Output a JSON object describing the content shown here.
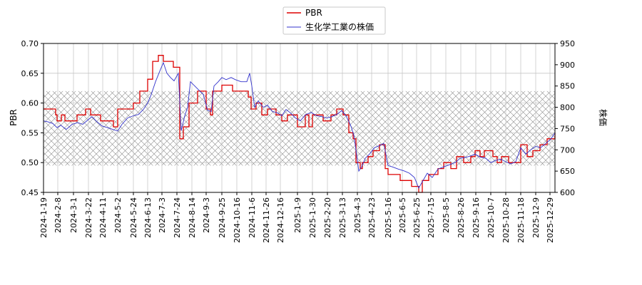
{
  "chart_data": {
    "type": "line",
    "legend": {
      "placement": "top-center"
    },
    "grid": true,
    "band": {
      "from": 0.495,
      "to": 0.62,
      "pattern": "crosshatch",
      "axis": "left"
    },
    "x_ticks": [
      "2024-1-19",
      "2024-2-8",
      "2024-3-1",
      "2024-3-22",
      "2024-4-11",
      "2024-5-2",
      "2024-5-24",
      "2024-6-13",
      "2024-7-3",
      "2024-7-24",
      "2024-8-14",
      "2024-9-3",
      "2024-9-25",
      "2024-10-16",
      "2024-11-6",
      "2024-11-26",
      "2024-12-16",
      "2025-1-9",
      "2025-1-30",
      "2025-2-20",
      "2025-3-13",
      "2025-4-3",
      "2025-4-23",
      "2025-5-16",
      "2025-6-5",
      "2025-6-25",
      "2025-7-15",
      "2025-8-5",
      "2025-8-26",
      "2025-9-16",
      "2025-10-7",
      "2025-10-28",
      "2025-11-18",
      "2025-12-9",
      "2025-12-29"
    ],
    "y_left": {
      "label": "PBR",
      "ylim": [
        0.45,
        0.7
      ],
      "ticks": [
        "0.45",
        "0.50",
        "0.55",
        "0.60",
        "0.65",
        "0.70"
      ]
    },
    "y_right": {
      "label": "株価",
      "ylim": [
        600,
        950
      ],
      "ticks": [
        "600",
        "650",
        "700",
        "750",
        "800",
        "850",
        "900",
        "950"
      ]
    },
    "series": [
      {
        "name": "PBR",
        "axis": "left",
        "color": "#dd0000",
        "step": true,
        "points": [
          [
            "2024-01-19",
            0.59
          ],
          [
            "2024-02-05",
            0.58
          ],
          [
            "2024-02-07",
            0.57
          ],
          [
            "2024-02-13",
            0.58
          ],
          [
            "2024-02-18",
            0.57
          ],
          [
            "2024-03-01",
            0.57
          ],
          [
            "2024-03-06",
            0.58
          ],
          [
            "2024-03-18",
            0.59
          ],
          [
            "2024-03-25",
            0.58
          ],
          [
            "2024-04-08",
            0.57
          ],
          [
            "2024-04-26",
            0.56
          ],
          [
            "2024-05-02",
            0.59
          ],
          [
            "2024-05-24",
            0.6
          ],
          [
            "2024-06-02",
            0.62
          ],
          [
            "2024-06-13",
            0.64
          ],
          [
            "2024-06-20",
            0.67
          ],
          [
            "2024-06-28",
            0.68
          ],
          [
            "2024-07-05",
            0.67
          ],
          [
            "2024-07-19",
            0.66
          ],
          [
            "2024-07-28",
            0.54
          ],
          [
            "2024-08-02",
            0.56
          ],
          [
            "2024-08-10",
            0.6
          ],
          [
            "2024-08-22",
            0.62
          ],
          [
            "2024-09-03",
            0.59
          ],
          [
            "2024-09-09",
            0.58
          ],
          [
            "2024-09-12",
            0.62
          ],
          [
            "2024-09-25",
            0.63
          ],
          [
            "2024-10-10",
            0.62
          ],
          [
            "2024-10-16",
            0.62
          ],
          [
            "2024-11-01",
            0.61
          ],
          [
            "2024-11-05",
            0.59
          ],
          [
            "2024-11-12",
            0.6
          ],
          [
            "2024-11-20",
            0.58
          ],
          [
            "2024-11-28",
            0.59
          ],
          [
            "2024-12-10",
            0.58
          ],
          [
            "2024-12-18",
            0.57
          ],
          [
            "2024-12-26",
            0.58
          ],
          [
            "2025-01-09",
            0.56
          ],
          [
            "2025-01-20",
            0.58
          ],
          [
            "2025-01-25",
            0.56
          ],
          [
            "2025-01-30",
            0.58
          ],
          [
            "2025-02-14",
            0.57
          ],
          [
            "2025-02-25",
            0.58
          ],
          [
            "2025-03-05",
            0.59
          ],
          [
            "2025-03-14",
            0.58
          ],
          [
            "2025-03-22",
            0.55
          ],
          [
            "2025-03-28",
            0.54
          ],
          [
            "2025-04-01",
            0.5
          ],
          [
            "2025-04-07",
            0.49
          ],
          [
            "2025-04-10",
            0.5
          ],
          [
            "2025-04-18",
            0.51
          ],
          [
            "2025-04-25",
            0.52
          ],
          [
            "2025-05-04",
            0.53
          ],
          [
            "2025-05-12",
            0.49
          ],
          [
            "2025-05-16",
            0.48
          ],
          [
            "2025-06-02",
            0.47
          ],
          [
            "2025-06-18",
            0.46
          ],
          [
            "2025-06-28",
            0.45
          ],
          [
            "2025-07-03",
            0.47
          ],
          [
            "2025-07-12",
            0.48
          ],
          [
            "2025-07-25",
            0.49
          ],
          [
            "2025-08-02",
            0.5
          ],
          [
            "2025-08-12",
            0.49
          ],
          [
            "2025-08-20",
            0.51
          ],
          [
            "2025-08-30",
            0.5
          ],
          [
            "2025-09-09",
            0.51
          ],
          [
            "2025-09-15",
            0.52
          ],
          [
            "2025-09-22",
            0.51
          ],
          [
            "2025-09-28",
            0.52
          ],
          [
            "2025-10-10",
            0.51
          ],
          [
            "2025-10-16",
            0.5
          ],
          [
            "2025-10-22",
            0.51
          ],
          [
            "2025-11-01",
            0.5
          ],
          [
            "2025-11-10",
            0.5
          ],
          [
            "2025-11-18",
            0.53
          ],
          [
            "2025-11-27",
            0.51
          ],
          [
            "2025-12-05",
            0.52
          ],
          [
            "2025-12-15",
            0.53
          ],
          [
            "2025-12-25",
            0.54
          ],
          [
            "2026-01-05",
            0.55
          ]
        ]
      },
      {
        "name": "生化学工業の株価",
        "axis": "right",
        "color": "#3333cc",
        "step": false,
        "points": [
          [
            "2024-01-19",
            768
          ],
          [
            "2024-01-25",
            766
          ],
          [
            "2024-02-01",
            762
          ],
          [
            "2024-02-07",
            752
          ],
          [
            "2024-02-12",
            758
          ],
          [
            "2024-02-20",
            748
          ],
          [
            "2024-02-28",
            760
          ],
          [
            "2024-03-07",
            764
          ],
          [
            "2024-03-14",
            760
          ],
          [
            "2024-03-21",
            770
          ],
          [
            "2024-03-27",
            778
          ],
          [
            "2024-04-03",
            766
          ],
          [
            "2024-04-10",
            756
          ],
          [
            "2024-04-18",
            752
          ],
          [
            "2024-04-25",
            748
          ],
          [
            "2024-05-02",
            744
          ],
          [
            "2024-05-08",
            760
          ],
          [
            "2024-05-16",
            775
          ],
          [
            "2024-05-24",
            780
          ],
          [
            "2024-05-31",
            783
          ],
          [
            "2024-06-07",
            795
          ],
          [
            "2024-06-13",
            810
          ],
          [
            "2024-06-18",
            830
          ],
          [
            "2024-06-24",
            860
          ],
          [
            "2024-06-30",
            885
          ],
          [
            "2024-07-05",
            905
          ],
          [
            "2024-07-10",
            880
          ],
          [
            "2024-07-15",
            870
          ],
          [
            "2024-07-20",
            862
          ],
          [
            "2024-07-26",
            880
          ],
          [
            "2024-07-30",
            745
          ],
          [
            "2024-08-04",
            780
          ],
          [
            "2024-08-08",
            800
          ],
          [
            "2024-08-12",
            860
          ],
          [
            "2024-08-18",
            850
          ],
          [
            "2024-08-24",
            840
          ],
          [
            "2024-08-30",
            830
          ],
          [
            "2024-09-05",
            793
          ],
          [
            "2024-09-10",
            790
          ],
          [
            "2024-09-14",
            850
          ],
          [
            "2024-09-20",
            860
          ],
          [
            "2024-09-25",
            870
          ],
          [
            "2024-10-01",
            865
          ],
          [
            "2024-10-08",
            870
          ],
          [
            "2024-10-14",
            865
          ],
          [
            "2024-10-22",
            860
          ],
          [
            "2024-10-30",
            860
          ],
          [
            "2024-11-03",
            880
          ],
          [
            "2024-11-06",
            850
          ],
          [
            "2024-11-10",
            800
          ],
          [
            "2024-11-15",
            815
          ],
          [
            "2024-11-22",
            800
          ],
          [
            "2024-11-28",
            805
          ],
          [
            "2024-12-05",
            790
          ],
          [
            "2024-12-12",
            787
          ],
          [
            "2024-12-18",
            780
          ],
          [
            "2024-12-24",
            795
          ],
          [
            "2024-12-30",
            787
          ],
          [
            "2025-01-06",
            775
          ],
          [
            "2025-01-13",
            768
          ],
          [
            "2025-01-20",
            782
          ],
          [
            "2025-01-28",
            788
          ],
          [
            "2025-02-05",
            780
          ],
          [
            "2025-02-12",
            778
          ],
          [
            "2025-02-19",
            775
          ],
          [
            "2025-02-26",
            778
          ],
          [
            "2025-03-05",
            783
          ],
          [
            "2025-03-12",
            792
          ],
          [
            "2025-03-18",
            780
          ],
          [
            "2025-03-24",
            760
          ],
          [
            "2025-03-29",
            735
          ],
          [
            "2025-04-01",
            700
          ],
          [
            "2025-04-05",
            650
          ],
          [
            "2025-04-09",
            660
          ],
          [
            "2025-04-14",
            680
          ],
          [
            "2025-04-20",
            690
          ],
          [
            "2025-04-27",
            705
          ],
          [
            "2025-05-04",
            710
          ],
          [
            "2025-05-10",
            715
          ],
          [
            "2025-05-16",
            663
          ],
          [
            "2025-05-22",
            660
          ],
          [
            "2025-05-30",
            655
          ],
          [
            "2025-06-08",
            650
          ],
          [
            "2025-06-15",
            645
          ],
          [
            "2025-06-22",
            635
          ],
          [
            "2025-06-28",
            610
          ],
          [
            "2025-07-03",
            625
          ],
          [
            "2025-07-10",
            645
          ],
          [
            "2025-07-17",
            635
          ],
          [
            "2025-07-25",
            655
          ],
          [
            "2025-08-02",
            660
          ],
          [
            "2025-08-10",
            665
          ],
          [
            "2025-08-18",
            670
          ],
          [
            "2025-08-25",
            680
          ],
          [
            "2025-09-01",
            682
          ],
          [
            "2025-09-08",
            685
          ],
          [
            "2025-09-15",
            690
          ],
          [
            "2025-09-22",
            683
          ],
          [
            "2025-09-30",
            680
          ],
          [
            "2025-10-07",
            670
          ],
          [
            "2025-10-14",
            675
          ],
          [
            "2025-10-21",
            678
          ],
          [
            "2025-10-28",
            672
          ],
          [
            "2025-11-04",
            667
          ],
          [
            "2025-11-11",
            672
          ],
          [
            "2025-11-18",
            705
          ],
          [
            "2025-11-25",
            690
          ],
          [
            "2025-12-02",
            700
          ],
          [
            "2025-12-09",
            708
          ],
          [
            "2025-12-16",
            705
          ],
          [
            "2025-12-23",
            715
          ],
          [
            "2025-12-30",
            725
          ],
          [
            "2026-01-05",
            740
          ]
        ]
      }
    ]
  }
}
